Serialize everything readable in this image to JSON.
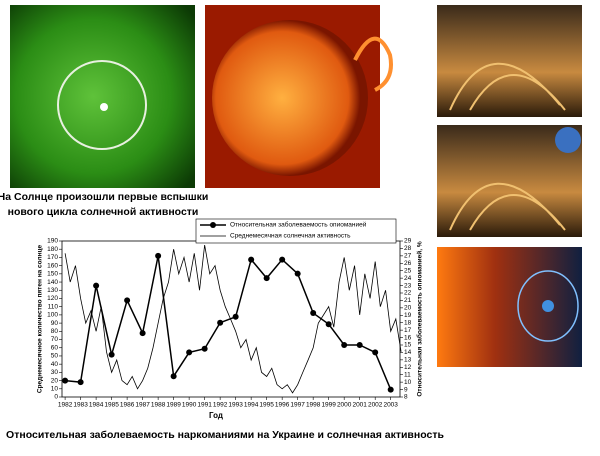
{
  "captions": {
    "top_line1": "На Солнце произошли первые вспышки",
    "top_line2": "нового цикла солнечной активности",
    "bottom": "Относительная заболеваемость наркоманиями на Украине и солнечная активность"
  },
  "chart_data": {
    "type": "line",
    "xlabel": "Год",
    "ylabel": "Среднемесячное количество пятен на солнце",
    "y2label": "Относительная заболеваемость опиоманией, %",
    "xlim": [
      1981.8,
      2003.6
    ],
    "xticks": [
      1982,
      1983,
      1984,
      1985,
      1986,
      1987,
      1988,
      1989,
      1990,
      1991,
      1992,
      1993,
      1994,
      1995,
      1996,
      1997,
      1998,
      1999,
      2000,
      2001,
      2002,
      2003
    ],
    "ylim": [
      0,
      190
    ],
    "yticks": [
      0,
      10,
      20,
      30,
      40,
      50,
      60,
      70,
      80,
      90,
      100,
      110,
      120,
      130,
      140,
      150,
      160,
      170,
      180,
      190
    ],
    "y2lim": [
      8,
      29
    ],
    "y2ticks": [
      8,
      9,
      10,
      11,
      12,
      13,
      14,
      15,
      16,
      17,
      18,
      19,
      20,
      21,
      22,
      23,
      24,
      25,
      26,
      27,
      28,
      29
    ],
    "series": [
      {
        "name": "Относительная заболеваемость опиоманией",
        "color": "#000000",
        "axis": "y2",
        "markers": true,
        "x": [
          1982,
          1983,
          1984,
          1985,
          1986,
          1987,
          1988,
          1989,
          1990,
          1991,
          1992,
          1993,
          1994,
          1995,
          1996,
          1997,
          1998,
          1999,
          2000,
          2001,
          2002,
          2003
        ],
        "values": [
          10.2,
          10,
          23,
          13.7,
          21,
          16.6,
          27,
          10.8,
          14,
          14.5,
          18,
          18.8,
          26.5,
          24,
          26.5,
          24.6,
          19.3,
          17.8,
          15,
          15,
          14,
          9
        ]
      },
      {
        "name": "Среднемесячная солнечная активность",
        "color": "#000000",
        "axis": "y",
        "markers": false,
        "x": [
          1982,
          1982.33,
          1982.67,
          1983,
          1983.33,
          1983.67,
          1984,
          1984.33,
          1984.67,
          1985,
          1985.33,
          1985.67,
          1986,
          1986.33,
          1986.67,
          1987,
          1987.33,
          1987.67,
          1988,
          1988.33,
          1988.67,
          1989,
          1989.33,
          1989.67,
          1990,
          1990.33,
          1990.67,
          1991,
          1991.33,
          1991.67,
          1992,
          1992.33,
          1992.67,
          1993,
          1993.33,
          1993.67,
          1994,
          1994.33,
          1994.67,
          1995,
          1995.33,
          1995.67,
          1996,
          1996.33,
          1996.67,
          1997,
          1997.33,
          1997.67,
          1998,
          1998.33,
          1998.67,
          1999,
          1999.33,
          1999.67,
          2000,
          2000.33,
          2000.67,
          2001,
          2001.33,
          2001.67,
          2002,
          2002.33,
          2002.67,
          2003,
          2003.33,
          2003.67
        ],
        "values": [
          175,
          140,
          160,
          120,
          90,
          105,
          80,
          110,
          55,
          30,
          45,
          20,
          15,
          25,
          10,
          20,
          35,
          60,
          90,
          120,
          140,
          180,
          150,
          170,
          140,
          175,
          130,
          185,
          150,
          160,
          130,
          110,
          95,
          80,
          60,
          70,
          45,
          60,
          30,
          25,
          35,
          15,
          10,
          15,
          5,
          15,
          30,
          45,
          60,
          90,
          100,
          110,
          85,
          140,
          170,
          130,
          160,
          100,
          150,
          120,
          165,
          110,
          130,
          80,
          95,
          55
        ]
      }
    ]
  }
}
